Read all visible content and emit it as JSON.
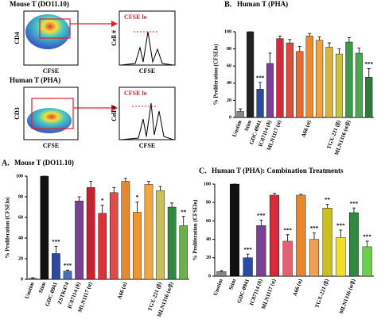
{
  "flow": {
    "mouse_title": "Mouse T (DO11.10)",
    "mouse_y": "CD4",
    "mouse_x": "CFSE",
    "mouse_hist_y": "Cell #",
    "mouse_hist_x": "CFSE",
    "mouse_gate": "CFSE lo",
    "human_title": "Human T (PHA)",
    "human_y": "CD3",
    "human_x": "CFSE",
    "human_hist_y": "Cell #",
    "human_hist_x": "CFSE",
    "human_gate": "CFSE lo"
  },
  "chart_data": [
    {
      "type": "bar",
      "panel": "B.",
      "title": "Human T (PHA)",
      "y_label": "% Proliferation (CFSElo)",
      "categories": [
        "Unstim",
        "Stim",
        "GDC-0941",
        "IC87114 (δ)",
        "MLN1117 (α)",
        null,
        null,
        "A66 (α)",
        null,
        null,
        "TGX-221 (β)",
        "MLN1316 (α/β)",
        null,
        null
      ],
      "values": [
        7,
        100,
        33,
        63,
        92,
        87,
        77,
        95,
        90,
        82,
        74,
        88,
        75,
        47
      ],
      "errors": [
        3,
        0,
        8,
        12,
        3,
        4,
        6,
        3,
        4,
        5,
        6,
        5,
        6,
        10
      ],
      "colors": [
        "#888888",
        "#222222",
        "#2b4ba0",
        "#7b3f98",
        "#d8283a",
        "#e04a3a",
        "#e86a30",
        "#f0892a",
        "#f2a23a",
        "#d9b23a",
        "#c9c23a",
        "#3a9a4a",
        "#4aa84e",
        "#2e7d3a"
      ],
      "significance": [
        null,
        null,
        "***",
        null,
        null,
        null,
        null,
        null,
        null,
        null,
        null,
        null,
        null,
        "***"
      ],
      "ylim": [
        0,
        100
      ],
      "yticks": [
        0,
        20,
        40,
        60,
        80,
        100
      ]
    },
    {
      "type": "bar",
      "panel": "A.",
      "title": "Mouse T (DO11.10)",
      "y_label": "% Proliferation (CFSElo)",
      "categories": [
        "Unstim",
        "Stim",
        "GDC-0941",
        "ZSTK474",
        "IC87114 (δ)",
        "MLN1117 (α)",
        null,
        null,
        "A66 (α)",
        null,
        null,
        "TGX-221 (β)",
        "MLN1316 (α/β)",
        null
      ],
      "values": [
        1,
        100,
        25,
        8,
        76,
        89,
        64,
        84,
        95,
        65,
        92,
        86,
        70,
        52
      ],
      "errors": [
        0.5,
        0,
        7,
        1,
        4,
        6,
        8,
        5,
        3,
        10,
        3,
        4,
        4,
        9
      ],
      "colors": [
        "#888888",
        "#111111",
        "#2b4ba0",
        "#4a6fb5",
        "#7b3f98",
        "#c8202e",
        "#d9323a",
        "#e04a4a",
        "#e8862a",
        "#f0962e",
        "#f2a640",
        "#c9c05a",
        "#2e8a3e",
        "#6ab04c"
      ],
      "significance": [
        null,
        null,
        "***",
        "***",
        null,
        null,
        "*",
        null,
        null,
        "*",
        null,
        null,
        null,
        "**"
      ],
      "ylim": [
        0,
        100
      ],
      "yticks": [
        0,
        20,
        40,
        60,
        80,
        100
      ]
    },
    {
      "type": "bar",
      "panel": "C.",
      "title": "Human T (PHA): Combination Treatments",
      "y_label": "% Proliferation (CFSElo)",
      "categories": [
        "Unstim",
        "Stim",
        "GDC-0941",
        "IC87114 (δ)",
        "MLN1117 (α)",
        null,
        "A66 (α)",
        null,
        "TGX-221 (β)",
        null,
        "MLN1316 (α/β)",
        null
      ],
      "values": [
        5,
        100,
        20,
        55,
        88,
        38,
        88,
        40,
        74,
        42,
        69,
        32
      ],
      "errors": [
        1,
        0,
        4,
        6,
        2,
        7,
        1,
        7,
        4,
        8,
        5,
        6
      ],
      "colors": [
        "#888888",
        "#111111",
        "#2b4ba0",
        "#7b3f98",
        "#d8283a",
        "#e86070",
        "#e8862a",
        "#f0a050",
        "#c9c020",
        "#f0e020",
        "#2e8a3e",
        "#6ad04c"
      ],
      "significance": [
        null,
        null,
        "***",
        "***",
        null,
        "***",
        null,
        "***",
        "**",
        "***",
        "***",
        "***"
      ],
      "ylim": [
        0,
        100
      ],
      "yticks": [
        0,
        20,
        40,
        60,
        80,
        100
      ]
    }
  ]
}
